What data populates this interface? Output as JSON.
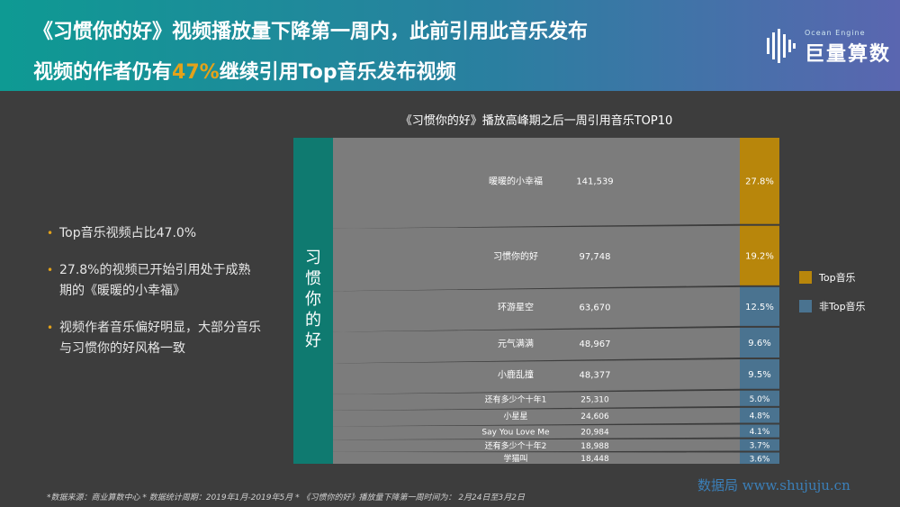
{
  "header": {
    "title_line1": "《习惯你的好》视频播放量下降第一周内，此前引用此音乐发布",
    "title_line2_before": "视频的作者仍有",
    "title_line2_highlight": "47%",
    "title_line2_after": "继续引用Top音乐发布视频"
  },
  "logo": {
    "sub": "Ocean Engine",
    "name": "巨量算数"
  },
  "bullets": [
    "Top音乐视频占比47.0%",
    "27.8%的视频已开始引用处于成熟期的《暖暖的小幸福》",
    "视频作者音乐偏好明显，大部分音乐与习惯你的好风格一致"
  ],
  "colors": {
    "source": "#0f7a70",
    "top": "#b8860b",
    "nontop": "#4a7390",
    "flow": "#808080",
    "highlight": "#e3a21a"
  },
  "chart_data": {
    "type": "sankey",
    "title": "《习惯你的好》播放高峰期之后一周引用音乐TOP10",
    "source": "习惯你的好",
    "items": [
      {
        "name": "暖暖的小幸福",
        "count": 141539,
        "count_label": "141,539",
        "share": 27.8,
        "share_label": "27.8%",
        "group": "Top音乐"
      },
      {
        "name": "习惯你的好",
        "count": 97748,
        "count_label": "97,748",
        "share": 19.2,
        "share_label": "19.2%",
        "group": "Top音乐"
      },
      {
        "name": "环游星空",
        "count": 63670,
        "count_label": "63,670",
        "share": 12.5,
        "share_label": "12.5%",
        "group": "非Top音乐"
      },
      {
        "name": "元气满满",
        "count": 48967,
        "count_label": "48,967",
        "share": 9.6,
        "share_label": "9.6%",
        "group": "非Top音乐"
      },
      {
        "name": "小鹿乱撞",
        "count": 48377,
        "count_label": "48,377",
        "share": 9.5,
        "share_label": "9.5%",
        "group": "非Top音乐"
      },
      {
        "name": "还有多少个十年1",
        "count": 25310,
        "count_label": "25,310",
        "share": 5.0,
        "share_label": "5.0%",
        "group": "非Top音乐"
      },
      {
        "name": "小星星",
        "count": 24606,
        "count_label": "24,606",
        "share": 4.8,
        "share_label": "4.8%",
        "group": "非Top音乐"
      },
      {
        "name": "Say You Love Me",
        "count": 20984,
        "count_label": "20,984",
        "share": 4.1,
        "share_label": "4.1%",
        "group": "非Top音乐"
      },
      {
        "name": "还有多少个十年2",
        "count": 18988,
        "count_label": "18,988",
        "share": 3.7,
        "share_label": "3.7%",
        "group": "非Top音乐"
      },
      {
        "name": "学猫叫",
        "count": 18448,
        "count_label": "18,448",
        "share": 3.6,
        "share_label": "3.6%",
        "group": "非Top音乐"
      }
    ],
    "legend": [
      {
        "label": "Top音乐",
        "color": "#b8860b"
      },
      {
        "label": "非Top音乐",
        "color": "#4a7390"
      }
    ]
  },
  "footer": "*数据来源：商业算数中心 * 数据统计周期：2019年1月-2019年5月 * 《习惯你的好》播放量下降第一周时间为： 2月24日至3月2日",
  "watermark": "数据局  www.shujuju.cn"
}
